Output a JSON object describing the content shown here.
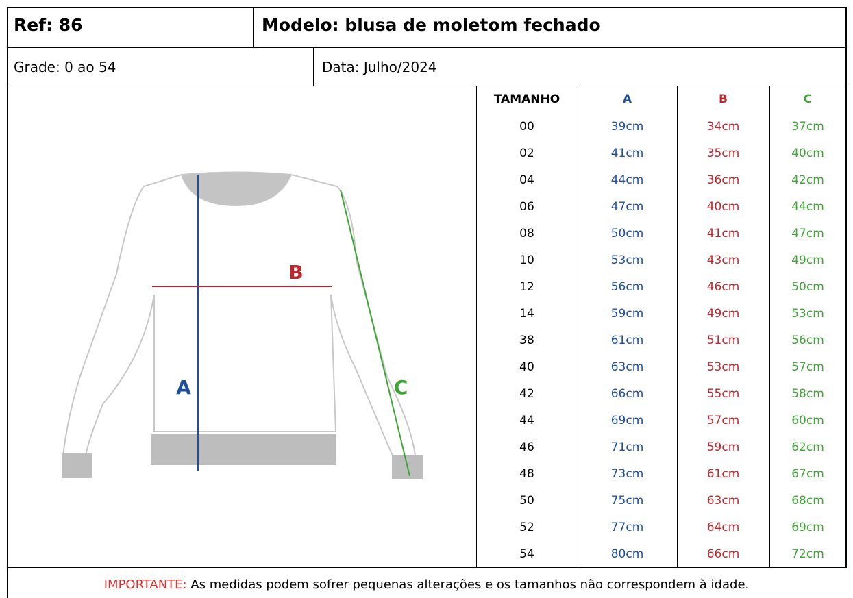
{
  "header": {
    "ref": "Ref: 86",
    "model": "Modelo: blusa de moletom fechado"
  },
  "info": {
    "grade": "Grade: 0 ao 54",
    "date": "Data: Julho/2024"
  },
  "diagram": {
    "labels": [
      "A",
      "B",
      "C"
    ]
  },
  "table": {
    "columns": [
      "TAMANHO",
      "A",
      "B",
      "C"
    ],
    "rows": [
      [
        "00",
        "39cm",
        "34cm",
        "37cm"
      ],
      [
        "02",
        "41cm",
        "35cm",
        "40cm"
      ],
      [
        "04",
        "44cm",
        "36cm",
        "42cm"
      ],
      [
        "06",
        "47cm",
        "40cm",
        "44cm"
      ],
      [
        "08",
        "50cm",
        "41cm",
        "47cm"
      ],
      [
        "10",
        "53cm",
        "43cm",
        "49cm"
      ],
      [
        "12",
        "56cm",
        "46cm",
        "50cm"
      ],
      [
        "14",
        "59cm",
        "49cm",
        "53cm"
      ],
      [
        "38",
        "61cm",
        "51cm",
        "56cm"
      ],
      [
        "40",
        "63cm",
        "53cm",
        "57cm"
      ],
      [
        "42",
        "66cm",
        "55cm",
        "58cm"
      ],
      [
        "44",
        "69cm",
        "57cm",
        "60cm"
      ],
      [
        "46",
        "71cm",
        "59cm",
        "62cm"
      ],
      [
        "48",
        "73cm",
        "61cm",
        "67cm"
      ],
      [
        "50",
        "75cm",
        "63cm",
        "68cm"
      ],
      [
        "52",
        "77cm",
        "64cm",
        "69cm"
      ],
      [
        "54",
        "80cm",
        "66cm",
        "72cm"
      ]
    ]
  },
  "note": {
    "label": "IMPORTANTE:",
    "text": "As medidas podem sofrer pequenas alterações e os tamanhos não correspondem à idade."
  }
}
